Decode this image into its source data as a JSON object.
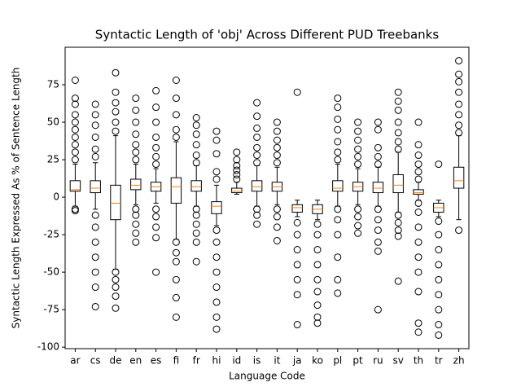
{
  "chart_data": {
    "type": "box",
    "title": "Syntactic Length of 'obj' Across Different PUD Treebanks",
    "xlabel": "Language Code",
    "ylabel": "Syntactic Length Expressed As % of Sentence Length",
    "categories": [
      "ar",
      "cs",
      "de",
      "en",
      "es",
      "fi",
      "fr",
      "hi",
      "id",
      "is",
      "it",
      "ja",
      "ko",
      "pl",
      "pt",
      "ru",
      "sv",
      "th",
      "tr",
      "zh"
    ],
    "box_color": "#000000",
    "median_color": "#ff7f0e",
    "ylim": [
      -101,
      100
    ],
    "yticks": [
      -100,
      -75,
      -50,
      -25,
      0,
      25,
      50,
      75
    ],
    "boxes": [
      {
        "whislo": -6,
        "q1": 4,
        "med": 5,
        "q3": 11,
        "whishi": 22,
        "fliers": [
          25,
          30,
          35,
          40,
          45,
          50,
          55,
          62,
          66,
          78,
          -8,
          -9
        ]
      },
      {
        "whislo": -8,
        "q1": 3,
        "med": 6,
        "q3": 11,
        "whishi": 23,
        "fliers": [
          27,
          32,
          40,
          48,
          55,
          62,
          -12,
          -20,
          -30,
          -40,
          -50,
          -60,
          -73
        ]
      },
      {
        "whislo": -48,
        "q1": -15,
        "med": -4,
        "q3": 8,
        "whishi": 41,
        "fliers": [
          44,
          50,
          57,
          63,
          70,
          83,
          -50,
          -55,
          -60,
          -66,
          -74
        ]
      },
      {
        "whislo": -5,
        "q1": 5,
        "med": 8,
        "q3": 12,
        "whishi": 22,
        "fliers": [
          25,
          30,
          35,
          42,
          50,
          58,
          66,
          -8,
          -12,
          -18,
          -24,
          -30
        ]
      },
      {
        "whislo": -4,
        "q1": 4,
        "med": 7,
        "q3": 10,
        "whishi": 19,
        "fliers": [
          22,
          27,
          33,
          40,
          50,
          60,
          71,
          -8,
          -13,
          -20,
          -27,
          -50
        ]
      },
      {
        "whislo": -28,
        "q1": -4,
        "med": 7,
        "q3": 13,
        "whishi": 37,
        "fliers": [
          40,
          45,
          55,
          66,
          78,
          -30,
          -37,
          -43,
          -55,
          -67,
          -80
        ]
      },
      {
        "whislo": -6,
        "q1": 4,
        "med": 7,
        "q3": 11,
        "whishi": 21,
        "fliers": [
          23,
          28,
          35,
          42,
          48,
          53,
          -8,
          -12,
          -18,
          -24,
          -30,
          -43
        ]
      },
      {
        "whislo": -19,
        "q1": -11,
        "med": -6,
        "q3": -3,
        "whishi": 8,
        "fliers": [
          12,
          17,
          29,
          38,
          44,
          -22,
          -30,
          -40,
          -50,
          -60,
          -70,
          -80,
          -88
        ]
      },
      {
        "whislo": 2,
        "q1": 3,
        "med": 4,
        "q3": 6,
        "whishi": 10,
        "fliers": [
          12,
          15,
          18,
          21,
          25,
          30
        ]
      },
      {
        "whislo": -6,
        "q1": 4,
        "med": 7,
        "q3": 11,
        "whishi": 21,
        "fliers": [
          23,
          28,
          33,
          40,
          46,
          54,
          63,
          -8,
          -12,
          -18
        ]
      },
      {
        "whislo": -5,
        "q1": 4,
        "med": 7,
        "q3": 10,
        "whishi": 20,
        "fliers": [
          23,
          28,
          33,
          38,
          44,
          50,
          -8,
          -13,
          -20,
          -29
        ]
      },
      {
        "whislo": -13,
        "q1": -10,
        "med": -7,
        "q3": -5,
        "whishi": -2,
        "fliers": [
          70,
          -17,
          -25,
          -35,
          -45,
          -55,
          -65,
          -85
        ]
      },
      {
        "whislo": -15,
        "q1": -11,
        "med": -8,
        "q3": -5,
        "whishi": -2,
        "fliers": [
          -18,
          -25,
          -35,
          -45,
          -55,
          -63,
          -72,
          -80,
          -84
        ]
      },
      {
        "whislo": -6,
        "q1": 4,
        "med": 6,
        "q3": 11,
        "whishi": 22,
        "fliers": [
          25,
          30,
          37,
          45,
          52,
          60,
          66,
          -8,
          -15,
          -25,
          -40,
          -55,
          -64
        ]
      },
      {
        "whislo": -5,
        "q1": 4,
        "med": 7,
        "q3": 10,
        "whishi": 19,
        "fliers": [
          22,
          27,
          32,
          38,
          44,
          50,
          -8,
          -13,
          -19,
          -24
        ]
      },
      {
        "whislo": -6,
        "q1": 3,
        "med": 6,
        "q3": 10,
        "whishi": 20,
        "fliers": [
          22,
          27,
          33,
          45,
          50,
          -8,
          -15,
          -22,
          -30,
          -36,
          -75
        ]
      },
      {
        "whislo": -10,
        "q1": 3,
        "med": 8,
        "q3": 15,
        "whishi": 30,
        "fliers": [
          32,
          37,
          43,
          50,
          58,
          64,
          70,
          -12,
          -17,
          -22,
          -26,
          -56
        ]
      },
      {
        "whislo": -2,
        "q1": 2,
        "med": 3,
        "q3": 5,
        "whishi": 10,
        "fliers": [
          12,
          17,
          22,
          28,
          35,
          50,
          -4,
          -10,
          -20,
          -30,
          -40,
          -50,
          -63,
          -84,
          -90
        ]
      },
      {
        "whislo": -13,
        "q1": -10,
        "med": -7,
        "q3": -4,
        "whishi": -2,
        "fliers": [
          22,
          -16,
          -25,
          -35,
          -45,
          -55,
          -65,
          -75,
          -85,
          -92
        ]
      },
      {
        "whislo": -15,
        "q1": 6,
        "med": 11,
        "q3": 20,
        "whishi": 41,
        "fliers": [
          43,
          48,
          55,
          62,
          70,
          77,
          82,
          91,
          -22
        ]
      }
    ]
  }
}
